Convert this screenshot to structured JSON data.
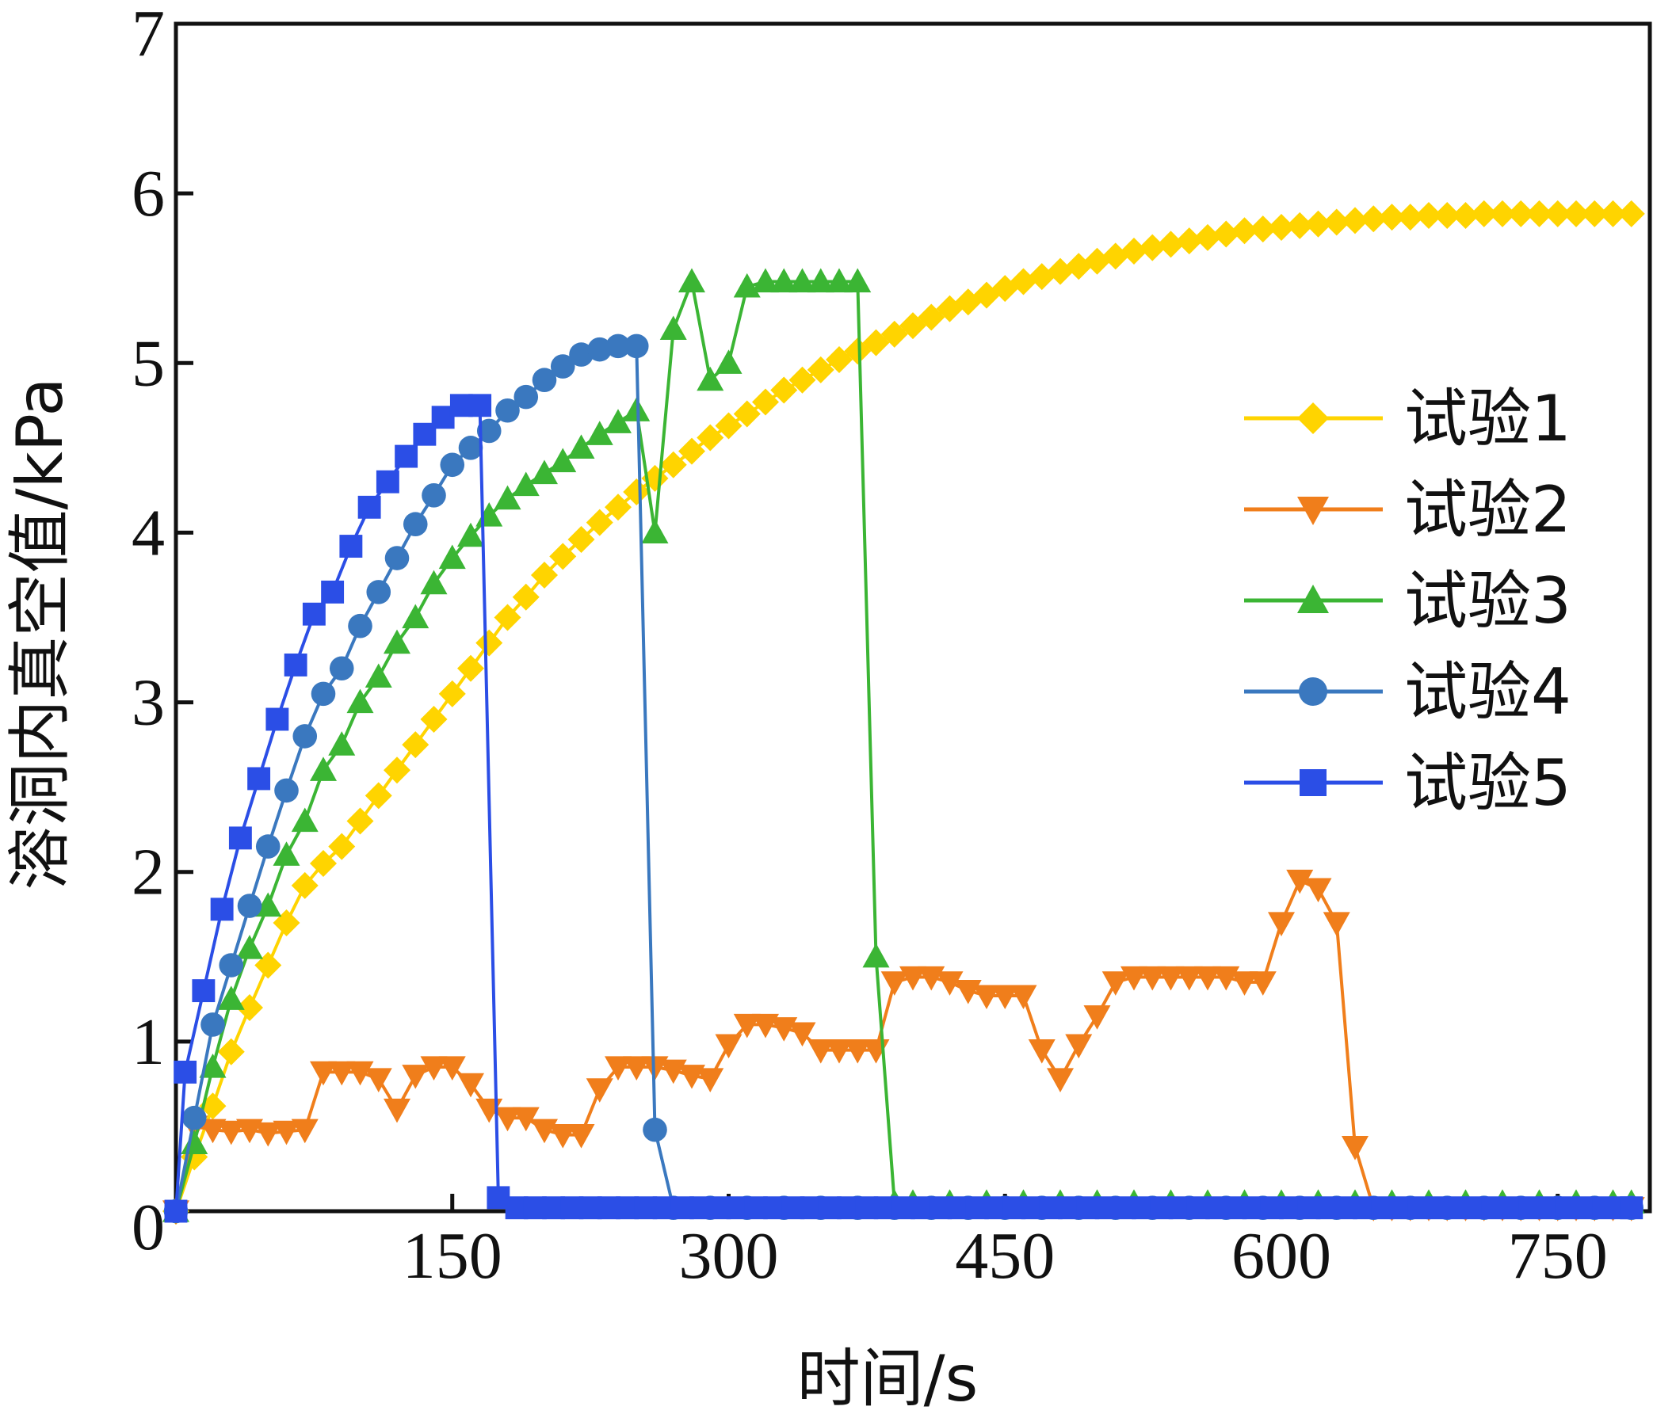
{
  "chart_data": {
    "type": "line",
    "xlabel": "时间/s",
    "ylabel": "溶洞内真空值/kPa",
    "xlim": [
      0,
      800
    ],
    "ylim": [
      0,
      7
    ],
    "xticks": [
      "150",
      "300",
      "450",
      "600",
      "750"
    ],
    "yticks": [
      "0",
      "1",
      "2",
      "3",
      "4",
      "5",
      "6",
      "7"
    ],
    "grid": false,
    "legend_position": "right",
    "series": [
      {
        "name": "试验1",
        "color": "#FFD400",
        "marker": "diamond",
        "x": [
          0,
          10,
          20,
          30,
          40,
          50,
          60,
          70,
          80,
          90,
          100,
          110,
          120,
          130,
          140,
          150,
          160,
          170,
          180,
          190,
          200,
          210,
          220,
          230,
          240,
          250,
          260,
          270,
          280,
          290,
          300,
          310,
          320,
          330,
          340,
          350,
          360,
          370,
          380,
          390,
          400,
          410,
          420,
          430,
          440,
          450,
          460,
          470,
          480,
          490,
          500,
          510,
          520,
          530,
          540,
          550,
          560,
          570,
          580,
          590,
          600,
          610,
          620,
          630,
          640,
          650,
          660,
          670,
          680,
          690,
          700,
          710,
          720,
          730,
          740,
          750,
          760,
          770,
          780,
          790
        ],
        "y": [
          0,
          0.32,
          0.62,
          0.94,
          1.2,
          1.45,
          1.7,
          1.92,
          2.05,
          2.15,
          2.3,
          2.45,
          2.6,
          2.75,
          2.9,
          3.05,
          3.2,
          3.35,
          3.5,
          3.62,
          3.75,
          3.86,
          3.96,
          4.06,
          4.15,
          4.24,
          4.32,
          4.4,
          4.48,
          4.56,
          4.63,
          4.7,
          4.77,
          4.84,
          4.9,
          4.96,
          5.02,
          5.07,
          5.12,
          5.17,
          5.22,
          5.27,
          5.32,
          5.36,
          5.4,
          5.44,
          5.48,
          5.51,
          5.54,
          5.57,
          5.6,
          5.63,
          5.66,
          5.68,
          5.7,
          5.72,
          5.74,
          5.76,
          5.78,
          5.79,
          5.8,
          5.81,
          5.82,
          5.83,
          5.84,
          5.85,
          5.86,
          5.86,
          5.87,
          5.87,
          5.87,
          5.88,
          5.88,
          5.88,
          5.88,
          5.88,
          5.88,
          5.88,
          5.88,
          5.88
        ]
      },
      {
        "name": "试验2",
        "color": "#F07E1B",
        "marker": "triangle-down",
        "x": [
          0,
          10,
          20,
          30,
          40,
          50,
          60,
          70,
          80,
          90,
          100,
          110,
          120,
          130,
          140,
          150,
          160,
          170,
          180,
          190,
          200,
          210,
          220,
          230,
          240,
          250,
          260,
          270,
          280,
          290,
          300,
          310,
          320,
          330,
          340,
          350,
          360,
          370,
          380,
          390,
          400,
          410,
          420,
          430,
          440,
          450,
          460,
          470,
          480,
          490,
          500,
          510,
          520,
          530,
          540,
          550,
          560,
          570,
          580,
          590,
          600,
          610,
          620,
          630,
          640,
          650,
          660,
          670,
          680,
          690,
          700,
          710,
          720,
          730,
          740,
          750,
          760,
          770,
          780,
          790
        ],
        "y": [
          0,
          0.5,
          0.48,
          0.47,
          0.48,
          0.46,
          0.47,
          0.48,
          0.82,
          0.82,
          0.82,
          0.78,
          0.6,
          0.8,
          0.85,
          0.85,
          0.75,
          0.6,
          0.55,
          0.55,
          0.48,
          0.45,
          0.45,
          0.72,
          0.85,
          0.85,
          0.85,
          0.83,
          0.8,
          0.78,
          0.98,
          1.1,
          1.1,
          1.08,
          1.05,
          0.95,
          0.95,
          0.95,
          0.95,
          1.35,
          1.38,
          1.38,
          1.35,
          1.3,
          1.27,
          1.27,
          1.27,
          0.95,
          0.78,
          0.98,
          1.15,
          1.35,
          1.38,
          1.38,
          1.38,
          1.38,
          1.38,
          1.38,
          1.35,
          1.35,
          1.7,
          1.95,
          1.9,
          1.7,
          0.38,
          0.02,
          0.02,
          0.02,
          0.02,
          0.02,
          0.02,
          0.02,
          0.02,
          0.02,
          0.02,
          0.02,
          0.02,
          0.02,
          0.02,
          0.02
        ]
      },
      {
        "name": "试验3",
        "color": "#3BB534",
        "marker": "triangle-up",
        "x": [
          0,
          10,
          20,
          30,
          40,
          50,
          60,
          70,
          80,
          90,
          100,
          110,
          120,
          130,
          140,
          150,
          160,
          170,
          180,
          190,
          200,
          210,
          220,
          230,
          240,
          250,
          260,
          270,
          280,
          290,
          300,
          310,
          320,
          330,
          340,
          350,
          360,
          370,
          380,
          390,
          400,
          420,
          440,
          460,
          480,
          500,
          520,
          540,
          560,
          580,
          600,
          620,
          640,
          660,
          680,
          700,
          720,
          740,
          760,
          780,
          790
        ],
        "y": [
          0,
          0.4,
          0.85,
          1.25,
          1.55,
          1.8,
          2.1,
          2.3,
          2.6,
          2.75,
          3.0,
          3.15,
          3.35,
          3.5,
          3.7,
          3.85,
          3.98,
          4.1,
          4.2,
          4.28,
          4.35,
          4.42,
          4.5,
          4.58,
          4.65,
          4.72,
          4.0,
          5.2,
          5.48,
          4.9,
          5.0,
          5.45,
          5.48,
          5.48,
          5.48,
          5.48,
          5.48,
          5.48,
          1.5,
          0.05,
          0.05,
          0.05,
          0.05,
          0.05,
          0.05,
          0.05,
          0.05,
          0.05,
          0.05,
          0.05,
          0.05,
          0.05,
          0.05,
          0.05,
          0.05,
          0.05,
          0.05,
          0.05,
          0.05,
          0.05,
          0.05
        ]
      },
      {
        "name": "试验4",
        "color": "#3A78BF",
        "marker": "circle",
        "x": [
          0,
          10,
          20,
          30,
          40,
          50,
          60,
          70,
          80,
          90,
          100,
          110,
          120,
          130,
          140,
          150,
          160,
          170,
          180,
          190,
          200,
          210,
          220,
          230,
          240,
          250,
          260,
          270,
          290,
          310,
          330,
          350,
          370,
          390,
          410,
          430,
          450,
          470,
          490,
          510,
          530,
          550,
          570,
          590,
          610,
          630,
          650,
          670,
          690,
          710,
          730,
          750,
          770,
          790
        ],
        "y": [
          0,
          0.55,
          1.1,
          1.45,
          1.8,
          2.15,
          2.48,
          2.8,
          3.05,
          3.2,
          3.45,
          3.65,
          3.85,
          4.05,
          4.22,
          4.4,
          4.5,
          4.6,
          4.72,
          4.8,
          4.9,
          4.98,
          5.05,
          5.08,
          5.1,
          5.1,
          0.48,
          0.02,
          0.02,
          0.02,
          0.02,
          0.02,
          0.02,
          0.02,
          0.02,
          0.02,
          0.02,
          0.02,
          0.02,
          0.02,
          0.02,
          0.02,
          0.02,
          0.02,
          0.02,
          0.02,
          0.02,
          0.02,
          0.02,
          0.02,
          0.02,
          0.02,
          0.02,
          0.02
        ]
      },
      {
        "name": "试验5",
        "color": "#2B4EE6",
        "marker": "square",
        "x": [
          0,
          5,
          15,
          25,
          35,
          45,
          55,
          65,
          75,
          85,
          95,
          105,
          115,
          125,
          135,
          145,
          155,
          165,
          175,
          185,
          195,
          205,
          215,
          225,
          235,
          245,
          255,
          265,
          275,
          285,
          295,
          305,
          315,
          325,
          335,
          345,
          355,
          365,
          375,
          385,
          395,
          405,
          415,
          425,
          435,
          445,
          455,
          465,
          475,
          485,
          495,
          505,
          515,
          525,
          535,
          545,
          555,
          565,
          575,
          585,
          595,
          605,
          615,
          625,
          635,
          645,
          655,
          665,
          675,
          685,
          695,
          705,
          715,
          725,
          735,
          745,
          755,
          765,
          775,
          785,
          790
        ],
        "y": [
          0,
          0.82,
          1.3,
          1.78,
          2.2,
          2.55,
          2.9,
          3.22,
          3.52,
          3.65,
          3.92,
          4.15,
          4.3,
          4.45,
          4.58,
          4.68,
          4.75,
          4.75,
          0.08,
          0.02,
          0.02,
          0.02,
          0.02,
          0.02,
          0.02,
          0.02,
          0.02,
          0.02,
          0.02,
          0.02,
          0.02,
          0.02,
          0.02,
          0.02,
          0.02,
          0.02,
          0.02,
          0.02,
          0.02,
          0.02,
          0.02,
          0.02,
          0.02,
          0.02,
          0.02,
          0.02,
          0.02,
          0.02,
          0.02,
          0.02,
          0.02,
          0.02,
          0.02,
          0.02,
          0.02,
          0.02,
          0.02,
          0.02,
          0.02,
          0.02,
          0.02,
          0.02,
          0.02,
          0.02,
          0.02,
          0.02,
          0.02,
          0.02,
          0.02,
          0.02,
          0.02,
          0.02,
          0.02,
          0.02,
          0.02,
          0.02,
          0.02,
          0.02,
          0.02,
          0.02,
          0.02
        ]
      }
    ]
  }
}
